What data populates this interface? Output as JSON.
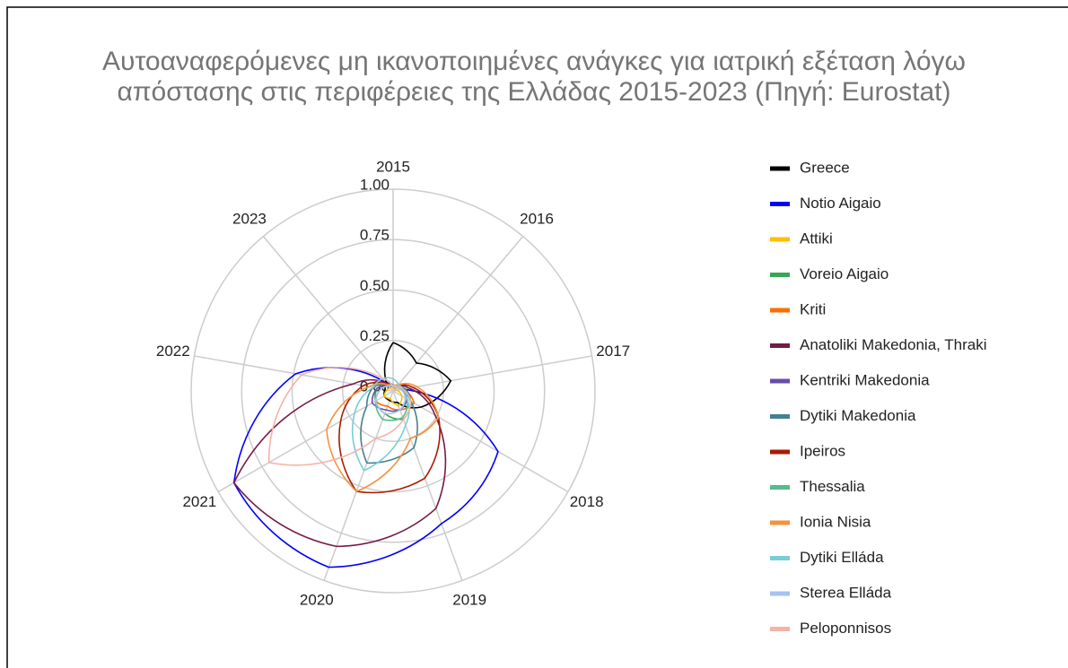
{
  "chart_data": {
    "type": "radar",
    "title": "Αυτοαναφερόμενες μη ικανοποιημένες ανάγκες για ιατρική εξέταση λόγω απόστασης στις περιφέρειες της Ελλάδας 2015-2023 (Πηγή: Eurostat)",
    "categories": [
      "2015",
      "2016",
      "2017",
      "2018",
      "2019",
      "2020",
      "2021",
      "2022",
      "2023"
    ],
    "ylim": [
      0,
      1
    ],
    "yticks": [
      {
        "value": 0,
        "label": "0.00"
      },
      {
        "value": 0.25,
        "label": "0.25"
      },
      {
        "value": 0.5,
        "label": "0.50"
      },
      {
        "value": 0.75,
        "label": "0.75"
      },
      {
        "value": 1,
        "label": "1.00"
      }
    ],
    "grid": true,
    "legend": "right",
    "series": [
      {
        "name": "Greece",
        "color": "#000000",
        "values": [
          0.24,
          0.18,
          0.29,
          0.16,
          0.06,
          0.05,
          0.05,
          0.04,
          0.05
        ]
      },
      {
        "name": "Notio Aigaio",
        "color": "#0000ff",
        "values": [
          0.03,
          0.02,
          0.05,
          0.6,
          0.7,
          0.93,
          0.91,
          0.49,
          0.05
        ]
      },
      {
        "name": "Attiki",
        "color": "#ffbf00",
        "values": [
          0.02,
          0.01,
          0.02,
          0.05,
          0.08,
          0.04,
          0.05,
          0.03,
          0.02
        ]
      },
      {
        "name": "Voreio Aigaio",
        "color": "#34a853",
        "values": [
          0.03,
          0.02,
          0.04,
          0.1,
          0.15,
          0.12,
          0.1,
          0.08,
          0.04
        ]
      },
      {
        "name": "Kriti",
        "color": "#ff6d01",
        "values": [
          0.02,
          0.03,
          0.05,
          0.12,
          0.1,
          0.08,
          0.1,
          0.06,
          0.03
        ]
      },
      {
        "name": "Anatoliki Makedonia, Thraki",
        "color": "#741b47",
        "values": [
          0.02,
          0.03,
          0.08,
          0.24,
          0.62,
          0.82,
          0.91,
          0.2,
          0.05
        ]
      },
      {
        "name": "Kentriki Makedonia",
        "color": "#674ea7",
        "values": [
          0.02,
          0.02,
          0.04,
          0.08,
          0.1,
          0.1,
          0.12,
          0.08,
          0.03
        ]
      },
      {
        "name": "Dytiki Makedonia",
        "color": "#45818e",
        "values": [
          0.03,
          0.03,
          0.06,
          0.1,
          0.3,
          0.38,
          0.15,
          0.1,
          0.04
        ]
      },
      {
        "name": "Ipeiros",
        "color": "#a61c00",
        "values": [
          0.02,
          0.03,
          0.1,
          0.26,
          0.46,
          0.53,
          0.3,
          0.15,
          0.04
        ]
      },
      {
        "name": "Thessalia",
        "color": "#57bb8a",
        "values": [
          0.02,
          0.02,
          0.05,
          0.08,
          0.14,
          0.15,
          0.1,
          0.06,
          0.03
        ]
      },
      {
        "name": "Ionia Nisia",
        "color": "#f6923d",
        "values": [
          0.02,
          0.04,
          0.12,
          0.26,
          0.25,
          0.53,
          0.38,
          0.12,
          0.04
        ]
      },
      {
        "name": "Dytiki Elláda",
        "color": "#76cdd8",
        "values": [
          0.06,
          0.04,
          0.05,
          0.08,
          0.18,
          0.42,
          0.22,
          0.1,
          0.08
        ]
      },
      {
        "name": "Sterea Elláda",
        "color": "#a4c2f4",
        "values": [
          0.03,
          0.02,
          0.04,
          0.07,
          0.1,
          0.12,
          0.1,
          0.06,
          0.03
        ]
      },
      {
        "name": "Peloponnisos",
        "color": "#f4b3a5",
        "values": [
          0.02,
          0.03,
          0.05,
          0.1,
          0.15,
          0.25,
          0.71,
          0.46,
          0.08
        ]
      }
    ]
  }
}
